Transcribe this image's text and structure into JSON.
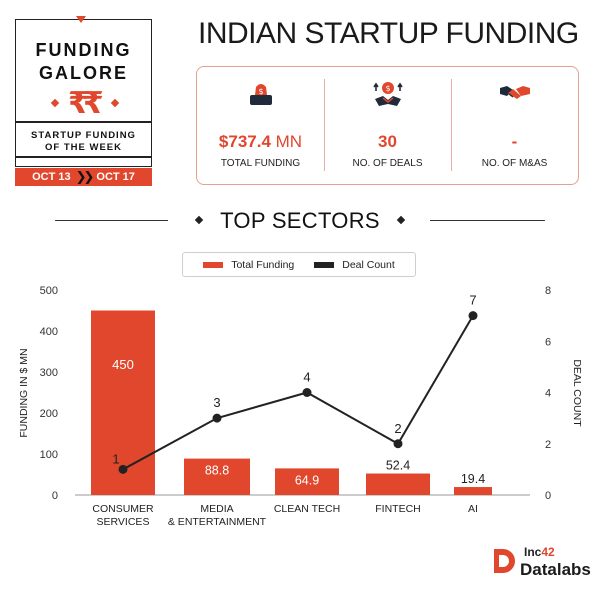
{
  "badge": {
    "title_line1": "FUNDING",
    "title_line2": "GALORE",
    "subtitle_line1": "STARTUP FUNDING",
    "subtitle_line2": "OF THE WEEK",
    "date_start": "OCT 13",
    "date_end": "OCT 17"
  },
  "title": "INDIAN STARTUP FUNDING",
  "stats": [
    {
      "icon": "money-bag-icon",
      "value": "$737.4",
      "unit": " MN",
      "label": "TOTAL FUNDING"
    },
    {
      "icon": "deal-handshake-icon",
      "value": "30",
      "unit": "",
      "label": "NO. OF DEALS"
    },
    {
      "icon": "handshake-icon",
      "value": "-",
      "unit": "",
      "label": "NO. OF M&AS"
    }
  ],
  "section_title": "TOP SECTORS",
  "legend": {
    "funding": "Total Funding",
    "deals": "Deal Count"
  },
  "colors": {
    "accent": "#e0472c",
    "line": "#222222"
  },
  "brand": {
    "inc": "Inc",
    "inc_sup": "42",
    "name": "Datalabs"
  },
  "chart_data": {
    "type": "bar",
    "categories": [
      "CONSUMER\nSERVICES",
      "MEDIA\n& ENTERTAINMENT",
      "CLEAN TECH",
      "FINTECH",
      "AI"
    ],
    "series": [
      {
        "name": "Total Funding",
        "type": "bar",
        "axis": "left",
        "values": [
          450,
          88.8,
          64.9,
          52.4,
          19.4
        ],
        "color": "#e0472c"
      },
      {
        "name": "Deal Count",
        "type": "line",
        "axis": "right",
        "values": [
          1,
          3,
          4,
          2,
          7
        ],
        "color": "#222222"
      }
    ],
    "ylabel": "FUNDING IN $ MN",
    "y2label": "DEAL COUNT",
    "ylim": [
      0,
      500
    ],
    "yticks": [
      0,
      100,
      200,
      300,
      400,
      500
    ],
    "y2lim": [
      0,
      8
    ],
    "y2ticks": [
      0,
      2,
      4,
      6,
      8
    ],
    "grid": false,
    "legend_position": "top-center"
  }
}
